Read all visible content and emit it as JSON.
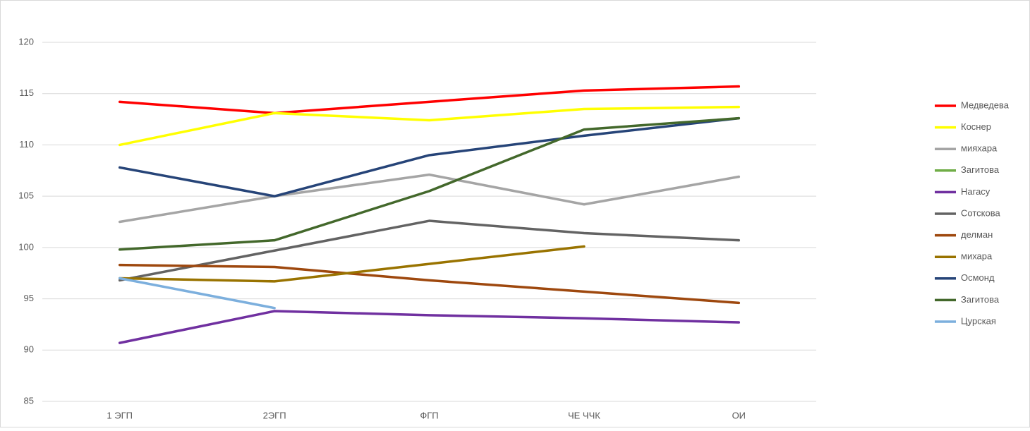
{
  "chart_data": {
    "type": "line",
    "categories": [
      "1 ЭГП",
      "2ЭГП",
      "ФГП",
      "ЧЕ ЧЧК",
      "ОИ"
    ],
    "ylim": [
      85,
      120
    ],
    "yticks": [
      85,
      90,
      95,
      100,
      105,
      110,
      115,
      120
    ],
    "grid": true,
    "legend": "right",
    "series": [
      {
        "name": "Медведева",
        "color": "#ff0000",
        "values": [
          114.2,
          113.1,
          114.2,
          115.3,
          115.7
        ]
      },
      {
        "name": "Коснер",
        "color": "#ffff00",
        "values": [
          110.0,
          113.1,
          112.4,
          113.5,
          113.7
        ]
      },
      {
        "name": "мияхара",
        "color": "#a5a5a5",
        "values": [
          102.5,
          105.0,
          107.1,
          104.2,
          106.9
        ]
      },
      {
        "name": "Загитова",
        "color": "#70ad47",
        "values": [
          null,
          null,
          null,
          null,
          null
        ]
      },
      {
        "name": "Нагасу",
        "color": "#7030a0",
        "values": [
          90.7,
          93.8,
          93.4,
          93.1,
          92.7
        ]
      },
      {
        "name": "Сотскова",
        "color": "#636363",
        "values": [
          96.8,
          99.7,
          102.6,
          101.4,
          100.7
        ]
      },
      {
        "name": "делман",
        "color": "#9e480e",
        "values": [
          98.3,
          98.1,
          96.8,
          95.7,
          94.6
        ]
      },
      {
        "name": "михара",
        "color": "#997300",
        "values": [
          97.0,
          96.7,
          98.4,
          100.1,
          null
        ]
      },
      {
        "name": "Осмонд",
        "color": "#264478",
        "values": [
          107.8,
          105.0,
          109.0,
          110.9,
          112.6
        ]
      },
      {
        "name": "Загитова",
        "color": "#43682b",
        "values": [
          99.8,
          100.7,
          105.5,
          111.5,
          112.6
        ]
      },
      {
        "name": "Цурская",
        "color": "#7cafdd",
        "values": [
          97.0,
          94.1,
          null,
          null,
          null
        ]
      }
    ]
  }
}
